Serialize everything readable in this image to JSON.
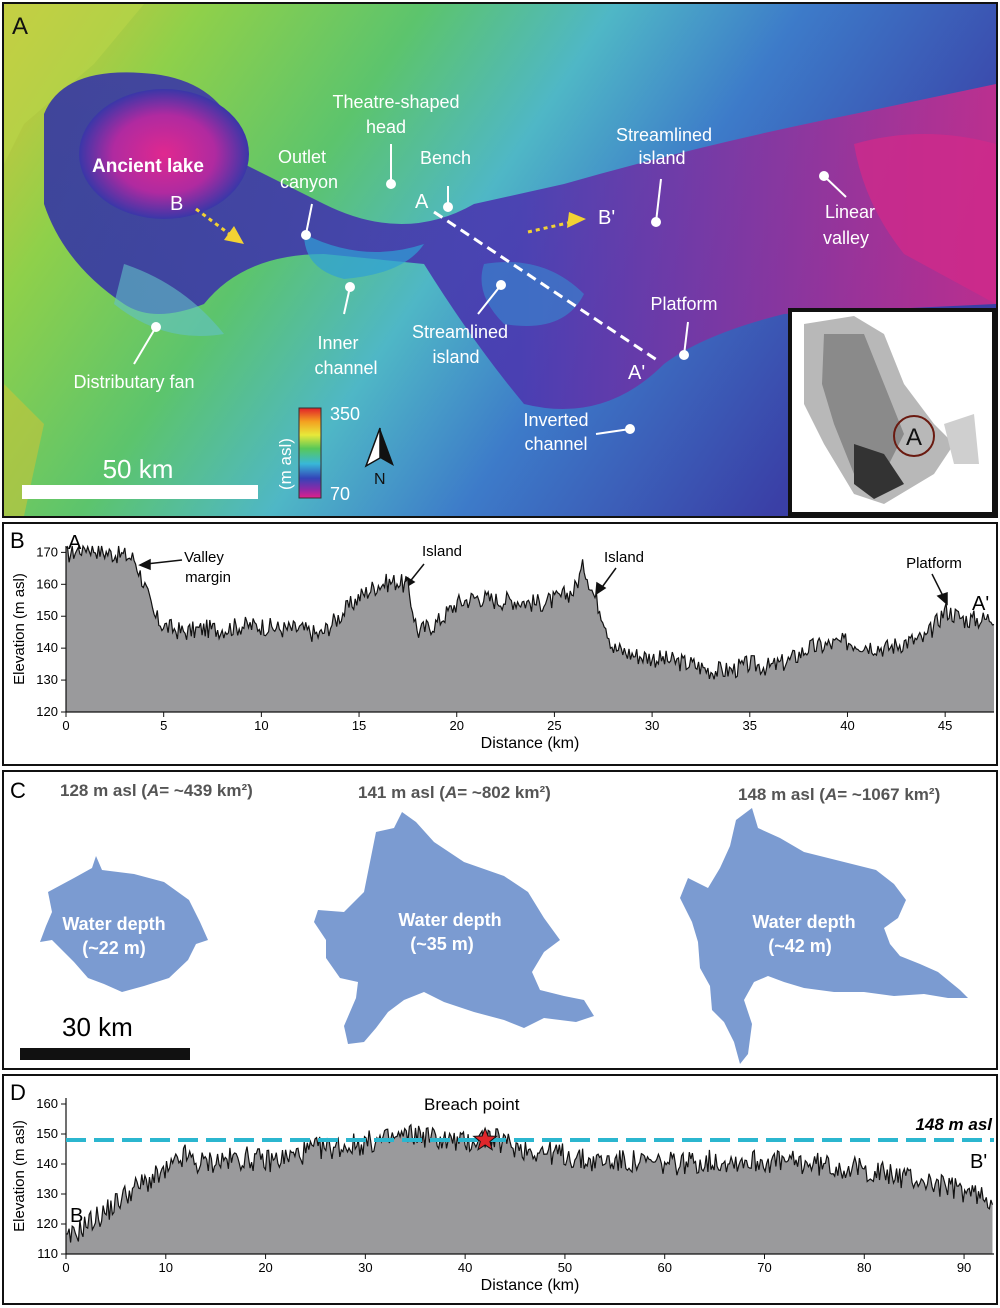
{
  "panel_a": {
    "label": "A",
    "labels": {
      "ancient_lake": "Ancient lake",
      "outlet_canyon_1": "Outlet",
      "outlet_canyon_2": "canyon",
      "theatre_1": "Theatre-shaped",
      "theatre_2": "head",
      "bench": "Bench",
      "streamlined_island_1a": "Streamlined",
      "streamlined_island_1b": "island",
      "linear_valley_1": "Linear",
      "linear_valley_2": "valley",
      "inner_channel_1": "Inner",
      "inner_channel_2": "channel",
      "streamlined_island_2a": "Streamlined",
      "streamlined_island_2b": "island",
      "platform": "Platform",
      "inverted_channel_1": "Inverted",
      "inverted_channel_2": "channel",
      "distributary_fan": "Distributary fan",
      "point_b": "B",
      "point_b_prime": "B'",
      "point_a": "A",
      "point_a_prime": "A'"
    },
    "scale_bar": "50 km",
    "legend": {
      "max": "350",
      "min": "70",
      "unit": "(m asl)"
    },
    "north": "N",
    "inset_label": "A"
  },
  "panel_b": {
    "label": "B",
    "annotations": {
      "start": "A",
      "end": "A'",
      "valley_margin_1": "Valley",
      "valley_margin_2": "margin",
      "island_1": "Island",
      "island_2": "Island",
      "platform": "Platform"
    },
    "chart_data": {
      "type": "area",
      "xlabel": "Distance (km)",
      "ylabel": "Elevation (m asl)",
      "xlim": [
        0,
        47.5
      ],
      "ylim": [
        120,
        172
      ],
      "xticks": [
        "0",
        "5",
        "10",
        "15",
        "20",
        "25",
        "30",
        "35",
        "40",
        "45"
      ],
      "yticks": [
        "120",
        "130",
        "140",
        "150",
        "160",
        "170"
      ],
      "x": [
        0,
        1,
        2,
        3,
        3.5,
        4,
        4.5,
        5,
        6,
        7,
        8,
        9,
        10,
        11,
        12,
        13,
        14,
        15,
        16,
        17,
        17.5,
        18,
        19,
        20,
        21,
        22,
        23,
        24,
        25,
        26,
        26.5,
        27,
        27.5,
        28,
        29,
        30,
        31,
        32,
        33,
        34,
        35,
        36,
        37,
        38,
        39,
        40,
        41,
        42,
        43,
        44,
        45,
        46,
        47,
        47.5
      ],
      "y": [
        169,
        172,
        170,
        169,
        168,
        160,
        150,
        147,
        145,
        146,
        146,
        147,
        147,
        146,
        146,
        144,
        150,
        156,
        160,
        161,
        159,
        145,
        148,
        154,
        156,
        155,
        155,
        154,
        155,
        158,
        166,
        157,
        150,
        140,
        138,
        137,
        136,
        135,
        133,
        133,
        135,
        134,
        136,
        140,
        141,
        142,
        141,
        140,
        142,
        143,
        152,
        149,
        149,
        150
      ]
    }
  },
  "panel_c": {
    "label": "C",
    "scale_bar": "30 km",
    "lakes": [
      {
        "level": "128 m asl (",
        "area_sym": "A",
        "area": "= ~439 km²)",
        "depth_1": "Water depth",
        "depth_2": "(~22 m)"
      },
      {
        "level": "141 m asl (",
        "area_sym": "A",
        "area": "= ~802 km²)",
        "depth_1": "Water depth",
        "depth_2": "(~35 m)"
      },
      {
        "level": "148 m asl (",
        "area_sym": "A",
        "area": "= ~1067 km²)",
        "depth_1": "Water depth",
        "depth_2": "(~42 m)"
      }
    ],
    "lake_color": "#7b9bd1"
  },
  "panel_d": {
    "label": "D",
    "annotations": {
      "breach_point": "Breach point",
      "water_level": "148 m asl",
      "start": "B",
      "end": "B'"
    },
    "breach_color": "#e0262b",
    "level_color": "#2bb6cf",
    "chart_data": {
      "type": "area",
      "xlabel": "Distance (km)",
      "ylabel": "Elevation (m asl)",
      "xlim": [
        0,
        93
      ],
      "ylim": [
        110,
        162
      ],
      "xticks": [
        "0",
        "10",
        "20",
        "30",
        "40",
        "50",
        "60",
        "70",
        "80",
        "90"
      ],
      "yticks": [
        "110",
        "120",
        "130",
        "140",
        "150",
        "160"
      ],
      "water_level": 148,
      "breach_x": 42,
      "x": [
        0,
        2,
        4,
        6,
        8,
        10,
        12,
        13,
        15,
        18,
        20,
        22,
        25,
        28,
        30,
        32,
        35,
        38,
        40,
        42,
        44,
        46,
        50,
        52,
        55,
        60,
        65,
        70,
        75,
        80,
        85,
        90,
        93
      ],
      "y": [
        114,
        120,
        124,
        130,
        134,
        137,
        143,
        140,
        141,
        142,
        141,
        142,
        145,
        146,
        147,
        148,
        150,
        148,
        147,
        149,
        147,
        145,
        143,
        141,
        141,
        140,
        141,
        141,
        140,
        138,
        135,
        131,
        128
      ]
    }
  }
}
